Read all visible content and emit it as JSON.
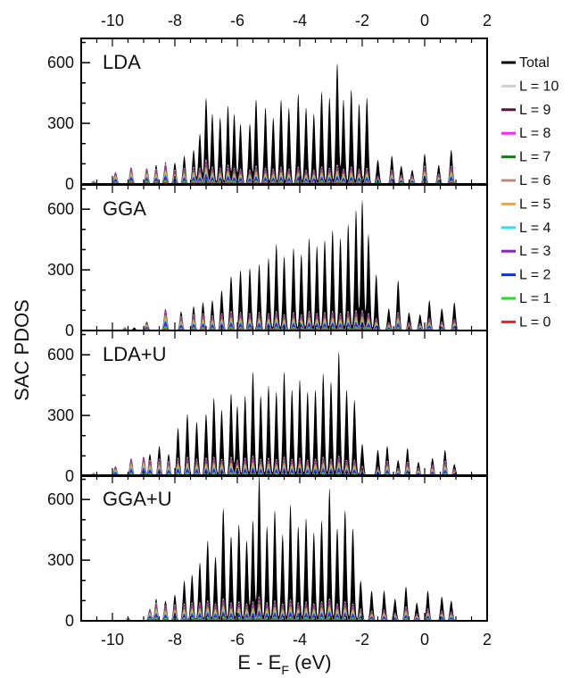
{
  "chart_data": {
    "type": "area",
    "xlabel": "E - E",
    "xlabel_sub": "F",
    "xlabel_unit": "(eV)",
    "ylabel": "SAC PDOS",
    "xlim": [
      -11,
      2
    ],
    "x_ticks": [
      -10,
      -8,
      -6,
      -4,
      -2,
      0,
      2
    ],
    "ylim": [
      0,
      720
    ],
    "y_ticks": [
      0,
      300,
      600
    ],
    "legend_position": "right",
    "series_styles": [
      {
        "name": "Total",
        "color": "#000000"
      },
      {
        "name": "L = 10",
        "color": "#d0d0d0"
      },
      {
        "name": "L = 9",
        "color": "#5a1040"
      },
      {
        "name": "L = 8",
        "color": "#ff20ff"
      },
      {
        "name": "L = 7",
        "color": "#1a7a1a"
      },
      {
        "name": "L = 6",
        "color": "#c08878"
      },
      {
        "name": "L = 5",
        "color": "#ffa020"
      },
      {
        "name": "L = 4",
        "color": "#20e8f0"
      },
      {
        "name": "L = 3",
        "color": "#8a20c8"
      },
      {
        "name": "L = 2",
        "color": "#1030f0"
      },
      {
        "name": "L = 1",
        "color": "#20e020"
      },
      {
        "name": "L = 0",
        "color": "#f02020"
      }
    ],
    "panels": [
      {
        "label": "LDA",
        "total_peaks": [
          [
            -8.6,
            95
          ],
          [
            -8.3,
            110
          ],
          [
            -8.0,
            105
          ],
          [
            -7.7,
            140
          ],
          [
            -7.4,
            170
          ],
          [
            -7.2,
            250
          ],
          [
            -7.0,
            430
          ],
          [
            -6.8,
            350
          ],
          [
            -6.55,
            330
          ],
          [
            -6.3,
            390
          ],
          [
            -6.1,
            350
          ],
          [
            -5.9,
            300
          ],
          [
            -5.6,
            300
          ],
          [
            -5.4,
            420
          ],
          [
            -5.1,
            380
          ],
          [
            -4.85,
            330
          ],
          [
            -4.6,
            420
          ],
          [
            -4.35,
            380
          ],
          [
            -4.05,
            450
          ],
          [
            -3.8,
            380
          ],
          [
            -3.55,
            350
          ],
          [
            -3.3,
            460
          ],
          [
            -3.05,
            430
          ],
          [
            -2.8,
            600
          ],
          [
            -2.6,
            420
          ],
          [
            -2.35,
            470
          ],
          [
            -2.1,
            400
          ],
          [
            -1.85,
            430
          ],
          [
            -1.5,
            120
          ],
          [
            -1.05,
            140
          ],
          [
            -0.75,
            90
          ],
          [
            -0.4,
            70
          ],
          [
            0.0,
            150
          ],
          [
            0.45,
            95
          ],
          [
            0.85,
            170
          ]
        ],
        "l_peaks": [
          [
            -10.6,
            15
          ],
          [
            -9.9,
            60
          ],
          [
            -9.4,
            85
          ],
          [
            -8.9,
            80
          ],
          [
            -8.6,
            75
          ],
          [
            -8.3,
            100
          ],
          [
            -8.0,
            70
          ],
          [
            -7.7,
            80
          ],
          [
            -7.4,
            85
          ],
          [
            -7.2,
            80
          ],
          [
            -7.0,
            120
          ],
          [
            -6.8,
            85
          ],
          [
            -6.55,
            80
          ],
          [
            -6.3,
            95
          ],
          [
            -6.1,
            80
          ],
          [
            -5.9,
            75
          ],
          [
            -5.6,
            70
          ],
          [
            -5.4,
            90
          ],
          [
            -5.1,
            80
          ],
          [
            -4.85,
            75
          ],
          [
            -4.6,
            85
          ],
          [
            -4.35,
            75
          ],
          [
            -4.05,
            85
          ],
          [
            -3.8,
            70
          ],
          [
            -3.55,
            70
          ],
          [
            -3.3,
            85
          ],
          [
            -3.05,
            80
          ],
          [
            -2.8,
            95
          ],
          [
            -2.6,
            75
          ],
          [
            -2.35,
            85
          ],
          [
            -2.1,
            75
          ],
          [
            -1.85,
            80
          ],
          [
            -1.5,
            40
          ],
          [
            -1.05,
            70
          ],
          [
            -0.75,
            45
          ],
          [
            -0.4,
            40
          ],
          [
            0.0,
            90
          ],
          [
            0.45,
            50
          ],
          [
            0.85,
            90
          ]
        ]
      },
      {
        "label": "GGA",
        "total_peaks": [
          [
            -9.3,
            15
          ],
          [
            -8.9,
            40
          ],
          [
            -8.3,
            100
          ],
          [
            -7.8,
            95
          ],
          [
            -7.4,
            120
          ],
          [
            -7.1,
            140
          ],
          [
            -6.8,
            150
          ],
          [
            -6.5,
            200
          ],
          [
            -6.2,
            270
          ],
          [
            -5.9,
            300
          ],
          [
            -5.6,
            310
          ],
          [
            -5.3,
            330
          ],
          [
            -5.0,
            360
          ],
          [
            -4.75,
            430
          ],
          [
            -4.5,
            370
          ],
          [
            -4.2,
            410
          ],
          [
            -3.95,
            380
          ],
          [
            -3.7,
            460
          ],
          [
            -3.45,
            420
          ],
          [
            -3.2,
            450
          ],
          [
            -2.95,
            500
          ],
          [
            -2.7,
            460
          ],
          [
            -2.45,
            530
          ],
          [
            -2.2,
            600
          ],
          [
            -2.0,
            650
          ],
          [
            -1.8,
            480
          ],
          [
            -1.55,
            280
          ],
          [
            -1.15,
            110
          ],
          [
            -0.85,
            250
          ],
          [
            -0.5,
            90
          ],
          [
            -0.15,
            80
          ],
          [
            0.15,
            150
          ],
          [
            0.55,
            110
          ],
          [
            0.95,
            140
          ]
        ],
        "l_peaks": [
          [
            -9.6,
            15
          ],
          [
            -8.9,
            45
          ],
          [
            -8.3,
            110
          ],
          [
            -7.8,
            70
          ],
          [
            -7.4,
            80
          ],
          [
            -7.1,
            85
          ],
          [
            -6.8,
            75
          ],
          [
            -6.5,
            85
          ],
          [
            -6.2,
            95
          ],
          [
            -5.9,
            90
          ],
          [
            -5.6,
            85
          ],
          [
            -5.3,
            90
          ],
          [
            -5.0,
            85
          ],
          [
            -4.75,
            95
          ],
          [
            -4.5,
            80
          ],
          [
            -4.2,
            90
          ],
          [
            -3.95,
            80
          ],
          [
            -3.7,
            95
          ],
          [
            -3.45,
            85
          ],
          [
            -3.2,
            90
          ],
          [
            -2.95,
            95
          ],
          [
            -2.7,
            85
          ],
          [
            -2.45,
            95
          ],
          [
            -2.2,
            100
          ],
          [
            -2.0,
            100
          ],
          [
            -1.8,
            85
          ],
          [
            -1.55,
            60
          ],
          [
            -1.15,
            40
          ],
          [
            -0.85,
            90
          ],
          [
            -0.5,
            40
          ],
          [
            -0.15,
            35
          ],
          [
            0.15,
            60
          ],
          [
            0.55,
            45
          ],
          [
            0.95,
            55
          ]
        ]
      },
      {
        "label": "LDA+U",
        "total_peaks": [
          [
            -8.8,
            110
          ],
          [
            -8.5,
            150
          ],
          [
            -8.2,
            110
          ],
          [
            -7.9,
            240
          ],
          [
            -7.6,
            310
          ],
          [
            -7.3,
            270
          ],
          [
            -7.0,
            310
          ],
          [
            -6.75,
            390
          ],
          [
            -6.5,
            330
          ],
          [
            -6.2,
            410
          ],
          [
            -6.0,
            350
          ],
          [
            -5.75,
            400
          ],
          [
            -5.5,
            520
          ],
          [
            -5.25,
            400
          ],
          [
            -5.0,
            450
          ],
          [
            -4.75,
            420
          ],
          [
            -4.5,
            520
          ],
          [
            -4.25,
            430
          ],
          [
            -4.0,
            480
          ],
          [
            -3.75,
            420
          ],
          [
            -3.5,
            430
          ],
          [
            -3.25,
            510
          ],
          [
            -3.0,
            470
          ],
          [
            -2.75,
            620
          ],
          [
            -2.5,
            430
          ],
          [
            -2.25,
            380
          ],
          [
            -2.0,
            160
          ],
          [
            -1.5,
            130
          ],
          [
            -1.2,
            150
          ],
          [
            -0.85,
            80
          ],
          [
            -0.55,
            140
          ],
          [
            -0.2,
            70
          ],
          [
            0.25,
            90
          ],
          [
            0.65,
            130
          ],
          [
            0.95,
            60
          ]
        ],
        "l_peaks": [
          [
            -10.6,
            15
          ],
          [
            -9.9,
            50
          ],
          [
            -9.4,
            90
          ],
          [
            -9.0,
            100
          ],
          [
            -8.8,
            80
          ],
          [
            -8.5,
            85
          ],
          [
            -8.2,
            75
          ],
          [
            -7.9,
            90
          ],
          [
            -7.6,
            95
          ],
          [
            -7.3,
            85
          ],
          [
            -7.0,
            90
          ],
          [
            -6.75,
            95
          ],
          [
            -6.5,
            85
          ],
          [
            -6.2,
            95
          ],
          [
            -6.0,
            80
          ],
          [
            -5.75,
            90
          ],
          [
            -5.5,
            100
          ],
          [
            -5.25,
            85
          ],
          [
            -5.0,
            90
          ],
          [
            -4.75,
            85
          ],
          [
            -4.5,
            95
          ],
          [
            -4.25,
            85
          ],
          [
            -4.0,
            90
          ],
          [
            -3.75,
            80
          ],
          [
            -3.5,
            85
          ],
          [
            -3.25,
            95
          ],
          [
            -3.0,
            85
          ],
          [
            -2.75,
            100
          ],
          [
            -2.5,
            80
          ],
          [
            -2.25,
            80
          ],
          [
            -2.0,
            50
          ],
          [
            -1.5,
            45
          ],
          [
            -1.2,
            75
          ],
          [
            -0.85,
            40
          ],
          [
            -0.55,
            70
          ],
          [
            -0.2,
            40
          ],
          [
            0.25,
            55
          ],
          [
            0.65,
            75
          ],
          [
            0.95,
            35
          ]
        ]
      },
      {
        "label": "GGA+U",
        "total_peaks": [
          [
            -8.6,
            110
          ],
          [
            -8.3,
            100
          ],
          [
            -8.0,
            130
          ],
          [
            -7.7,
            200
          ],
          [
            -7.45,
            230
          ],
          [
            -7.2,
            290
          ],
          [
            -6.95,
            400
          ],
          [
            -6.7,
            320
          ],
          [
            -6.45,
            560
          ],
          [
            -6.2,
            420
          ],
          [
            -5.95,
            480
          ],
          [
            -5.7,
            400
          ],
          [
            -5.5,
            500
          ],
          [
            -5.3,
            720
          ],
          [
            -5.05,
            470
          ],
          [
            -4.8,
            550
          ],
          [
            -4.55,
            430
          ],
          [
            -4.3,
            580
          ],
          [
            -4.05,
            470
          ],
          [
            -3.8,
            510
          ],
          [
            -3.55,
            440
          ],
          [
            -3.3,
            500
          ],
          [
            -3.05,
            660
          ],
          [
            -2.8,
            460
          ],
          [
            -2.55,
            550
          ],
          [
            -2.3,
            460
          ],
          [
            -2.05,
            200
          ],
          [
            -1.7,
            150
          ],
          [
            -1.3,
            150
          ],
          [
            -0.95,
            110
          ],
          [
            -0.6,
            170
          ],
          [
            -0.25,
            90
          ],
          [
            0.1,
            150
          ],
          [
            0.55,
            120
          ],
          [
            0.85,
            100
          ]
        ],
        "l_peaks": [
          [
            -9.5,
            15
          ],
          [
            -8.8,
            60
          ],
          [
            -8.6,
            90
          ],
          [
            -8.3,
            75
          ],
          [
            -8.0,
            80
          ],
          [
            -7.7,
            85
          ],
          [
            -7.45,
            90
          ],
          [
            -7.2,
            90
          ],
          [
            -6.95,
            100
          ],
          [
            -6.7,
            85
          ],
          [
            -6.45,
            110
          ],
          [
            -6.2,
            90
          ],
          [
            -5.95,
            95
          ],
          [
            -5.7,
            85
          ],
          [
            -5.5,
            95
          ],
          [
            -5.3,
            120
          ],
          [
            -5.05,
            90
          ],
          [
            -4.8,
            100
          ],
          [
            -4.55,
            85
          ],
          [
            -4.3,
            105
          ],
          [
            -4.05,
            90
          ],
          [
            -3.8,
            95
          ],
          [
            -3.55,
            85
          ],
          [
            -3.3,
            95
          ],
          [
            -3.05,
            110
          ],
          [
            -2.8,
            85
          ],
          [
            -2.55,
            95
          ],
          [
            -2.3,
            85
          ],
          [
            -2.05,
            60
          ],
          [
            -1.7,
            50
          ],
          [
            -1.3,
            55
          ],
          [
            -0.95,
            40
          ],
          [
            -0.6,
            70
          ],
          [
            -0.25,
            35
          ],
          [
            0.1,
            60
          ],
          [
            0.55,
            50
          ],
          [
            0.85,
            45
          ]
        ]
      }
    ]
  }
}
